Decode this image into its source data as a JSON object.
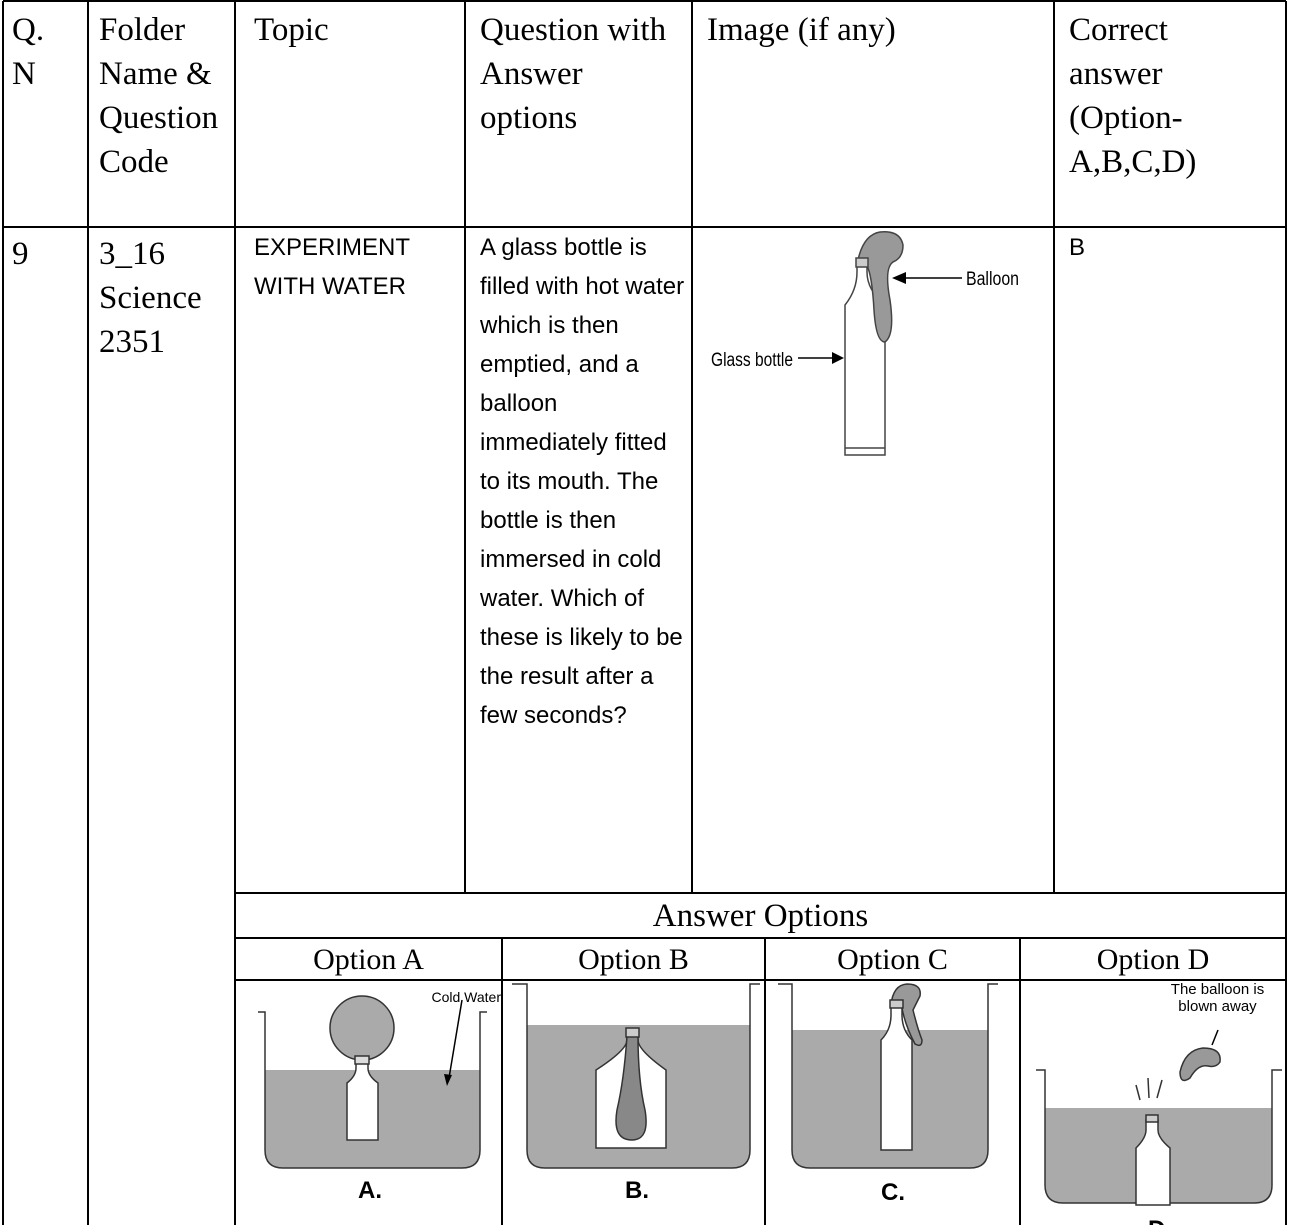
{
  "table": {
    "header": [
      "Q. N",
      "Folder Name & Question Code",
      "Topic",
      "Question with Answer options",
      "Image (if any)",
      "Correct answer (Option-A,B,C,D)"
    ],
    "row": {
      "qn": "9",
      "folder": "3_16 Science 2351",
      "topic": "EXPERIMENT WITH WATER",
      "question": "A glass bottle is filled with hot water which is then emptied, and a balloon immediately fitted to its mouth. The bottle is then immersed in cold water. Which of these is likely to be the result after a few seconds?",
      "image": {
        "balloon_label": "Balloon",
        "bottle_label": "Glass bottle"
      },
      "answer": "B"
    },
    "answer_options": {
      "title": "Answer Options",
      "options": [
        {
          "label": "Option A",
          "caption": "A.",
          "note": "Cold Water"
        },
        {
          "label": "Option B",
          "caption": "B."
        },
        {
          "label": "Option C",
          "caption": "C."
        },
        {
          "label": "Option D",
          "caption": "D.",
          "note": "The balloon is blown away"
        }
      ]
    }
  }
}
